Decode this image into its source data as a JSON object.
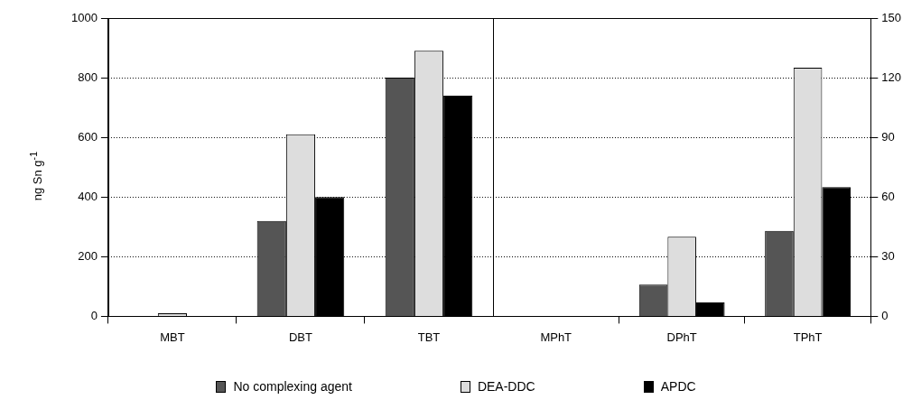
{
  "chart_data": [
    {
      "type": "bar",
      "ylabel": "ng Sn g$^{-1}$",
      "categories": [
        "MBT",
        "DBT",
        "TBT"
      ],
      "series": [
        {
          "name": "No complexing agent",
          "color": "#555555",
          "values": [
            0,
            320,
            800
          ]
        },
        {
          "name": "DEA-DDC",
          "color": "#dddddd",
          "values": [
            10,
            610,
            890
          ]
        },
        {
          "name": "APDC",
          "color": "#000000",
          "values": [
            0,
            400,
            740
          ]
        }
      ],
      "ylim": [
        0,
        1000
      ],
      "yticks": [
        0,
        200,
        400,
        600,
        800,
        1000
      ],
      "grid": "y",
      "legend": "bottom"
    },
    {
      "type": "bar",
      "categories": [
        "MPhT",
        "DPhT",
        "TPhT"
      ],
      "series": [
        {
          "color": "#555555",
          "values": [
            0,
            16,
            43
          ],
          "axis": "y2"
        },
        {
          "color": "#dddddd",
          "values": [
            0,
            40,
            125
          ],
          "axis": "y2"
        },
        {
          "color": "#000000",
          "values": [
            0,
            7,
            65
          ],
          "axis": "y2"
        }
      ],
      "y2lim": [
        0,
        150
      ],
      "y2ticks": [
        0,
        30,
        60,
        90,
        120,
        150
      ],
      "grid": "y"
    }
  ]
}
